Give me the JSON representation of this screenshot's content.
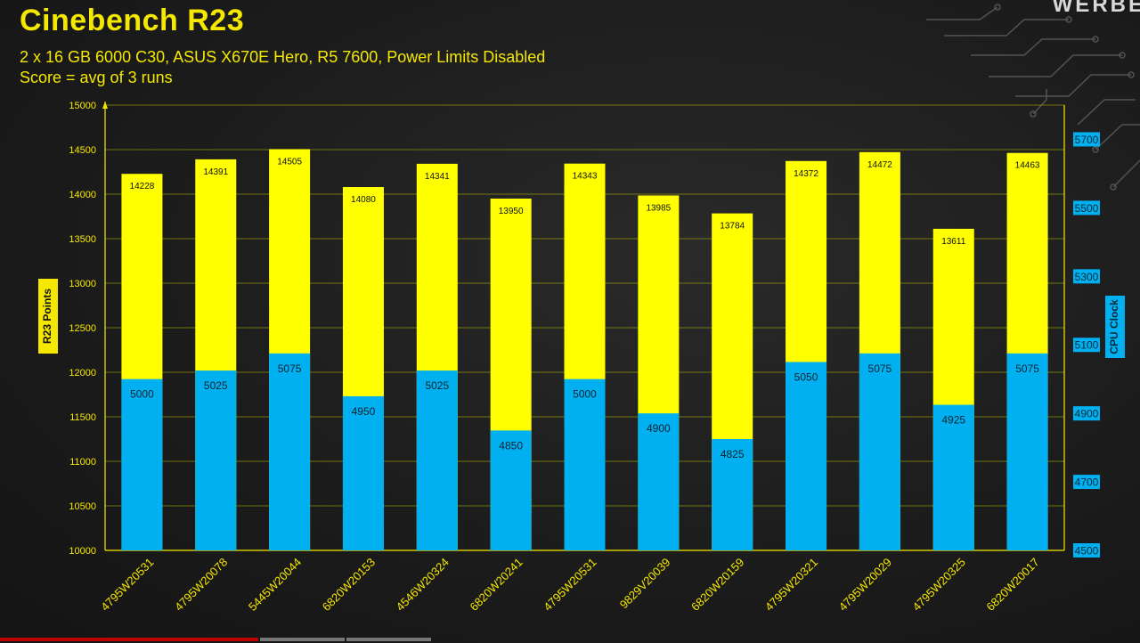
{
  "header": {
    "title": "Cinebench R23",
    "subtitle_line1": "2 x 16 GB 6000 C30, ASUS X670E Hero,  R5 7600, Power Limits Disabled",
    "subtitle_line2": "Score = avg of 3 runs",
    "brand": "WERBE"
  },
  "chart_data": {
    "type": "bar",
    "categories": [
      "4795W20531",
      "4795W20078",
      "5445W20044",
      "6820W20153",
      "4546W20324",
      "6820W20241",
      "4795W20531",
      "9829V20039",
      "6820W20159",
      "4795W20321",
      "4795W20029",
      "4795W20325",
      "6820W20017"
    ],
    "series": [
      {
        "axis": "left",
        "color": "#ffff00",
        "values": [
          14228,
          14391,
          14505,
          14080,
          14341,
          13950,
          14343,
          13985,
          13784,
          14372,
          14472,
          13611,
          14463
        ]
      },
      {
        "axis": "right",
        "color": "#00b0f0",
        "values": [
          5000,
          5025,
          5075,
          4950,
          5025,
          4850,
          5000,
          4900,
          4825,
          5050,
          5075,
          4925,
          5075
        ]
      }
    ],
    "ylabel": "R23 Points",
    "y2label": "CPU Clock",
    "ylim": [
      10000,
      15000
    ],
    "yticks": [
      10000,
      10500,
      11000,
      11500,
      12000,
      12500,
      13000,
      13500,
      14000,
      14500,
      15000
    ],
    "y2lim": [
      4500,
      5800
    ],
    "y2ticks": [
      4500,
      4700,
      4900,
      5100,
      5300,
      5500,
      5700
    ],
    "grid": true
  },
  "colors": {
    "accent": "#f5e800",
    "bar_primary": "#ffff00",
    "bar_secondary": "#00b0f0",
    "gridline": "#b7b700"
  }
}
